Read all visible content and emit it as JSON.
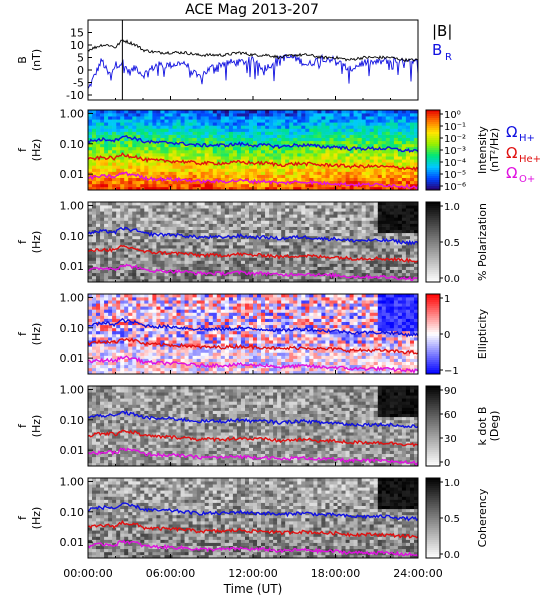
{
  "title": "ACE Mag 2013-207",
  "xlabel": "Time (UT)",
  "xticks": [
    "00:00:00",
    "06:00:00",
    "12:00:00",
    "18:00:00",
    "24:00:00"
  ],
  "colors": {
    "frame": "#000000",
    "B_total": "#000000",
    "B_R": "#1010e0",
    "omega_H": "#1010e0",
    "omega_He": "#e01010",
    "omega_O": "#e010e0"
  },
  "field_panel": {
    "ylabel_1": "B",
    "ylabel_2": "(nT)",
    "yticks": [
      "15",
      "10",
      "5",
      "0",
      "-5",
      "-10"
    ],
    "legend_total": "|B|",
    "legend_radial_base": "B",
    "legend_radial_sub": "R"
  },
  "freq_axis": {
    "ylabel_1": "f",
    "ylabel_2": "(Hz)",
    "yticks": [
      "1.00",
      "0.10",
      "0.01"
    ]
  },
  "gyro_legend": {
    "symbol": "Ω",
    "h_sub": "H+",
    "he_sub": "He+",
    "o_sub": "O+"
  },
  "panels": [
    {
      "id": "intensity",
      "label_1": "Intensity",
      "label_2": "(nT²/Hz)",
      "colormap": "rainbow",
      "cbar_ticks": [
        "10⁰",
        "10⁻¹",
        "10⁻²",
        "10⁻³",
        "10⁻⁴",
        "10⁻⁵",
        "10⁻⁶"
      ]
    },
    {
      "id": "polarization",
      "label_1": "% Polarization",
      "label_2": "",
      "colormap": "gray",
      "cbar_ticks": [
        "1.0",
        "0.5",
        "0.0"
      ]
    },
    {
      "id": "ellipticity",
      "label_1": "Ellipticity",
      "label_2": "",
      "colormap": "bwr",
      "cbar_ticks": [
        "1",
        "0",
        "−1"
      ]
    },
    {
      "id": "kdotb",
      "label_1": "k dot B",
      "label_2": "(Deg)",
      "colormap": "gray",
      "cbar_ticks": [
        "90",
        "60",
        "30",
        "0"
      ]
    },
    {
      "id": "coherency",
      "label_1": "Coherency",
      "label_2": "",
      "colormap": "gray",
      "cbar_ticks": [
        "1.0",
        "0.5",
        "0.0"
      ]
    }
  ],
  "chart_data": {
    "type": "line",
    "title": "ACE Mag 2013-207",
    "xlabel": "Time (UT)",
    "x_hours": [
      0,
      0.5,
      1,
      1.5,
      2,
      2.5,
      3,
      3.5,
      4,
      5,
      6,
      7,
      8,
      9,
      10,
      11,
      12,
      13,
      14,
      15,
      16,
      17,
      18,
      19,
      20,
      21,
      22,
      23,
      24
    ],
    "ylim": [
      -12,
      20
    ],
    "series": [
      {
        "name": "|B|",
        "values": [
          8,
          9,
          10,
          10,
          9,
          12,
          11,
          10,
          8,
          7,
          7,
          7,
          6,
          6,
          6,
          7,
          6,
          6,
          5,
          6,
          6,
          5,
          5,
          4,
          5,
          5,
          5,
          4,
          4
        ]
      },
      {
        "name": "B",
        "values": [
          -8,
          -2,
          4,
          -2,
          2,
          3,
          -1,
          1,
          -2,
          2,
          2,
          3,
          -3,
          1,
          3,
          3,
          4,
          1,
          5,
          5,
          2,
          5,
          4,
          0,
          3,
          3,
          4,
          3,
          3
        ]
      }
    ],
    "gyrofrequency_lines": [
      {
        "name": "H+",
        "values_hz": [
          0.12,
          0.13,
          0.14,
          0.14,
          0.13,
          0.18,
          0.16,
          0.15,
          0.12,
          0.11,
          0.11,
          0.1,
          0.09,
          0.09,
          0.09,
          0.1,
          0.09,
          0.09,
          0.08,
          0.09,
          0.09,
          0.08,
          0.08,
          0.07,
          0.07,
          0.07,
          0.07,
          0.06,
          0.06
        ]
      },
      {
        "name": "He+",
        "values_hz": [
          0.03,
          0.033,
          0.035,
          0.035,
          0.033,
          0.045,
          0.04,
          0.038,
          0.03,
          0.028,
          0.027,
          0.026,
          0.023,
          0.023,
          0.023,
          0.025,
          0.023,
          0.023,
          0.02,
          0.022,
          0.022,
          0.02,
          0.02,
          0.018,
          0.018,
          0.018,
          0.017,
          0.016,
          0.015
        ]
      },
      {
        "name": "O+",
        "values_hz": [
          0.0075,
          0.008,
          0.0085,
          0.0085,
          0.008,
          0.011,
          0.01,
          0.0095,
          0.0075,
          0.007,
          0.0068,
          0.0065,
          0.0058,
          0.0058,
          0.0058,
          0.0062,
          0.0058,
          0.0058,
          0.005,
          0.0055,
          0.0055,
          0.005,
          0.005,
          0.0045,
          0.0045,
          0.0045,
          0.0043,
          0.004,
          0.0038
        ]
      }
    ],
    "freq_ylim_hz": [
      0.003,
      1.3
    ],
    "freq_scale": "log"
  }
}
